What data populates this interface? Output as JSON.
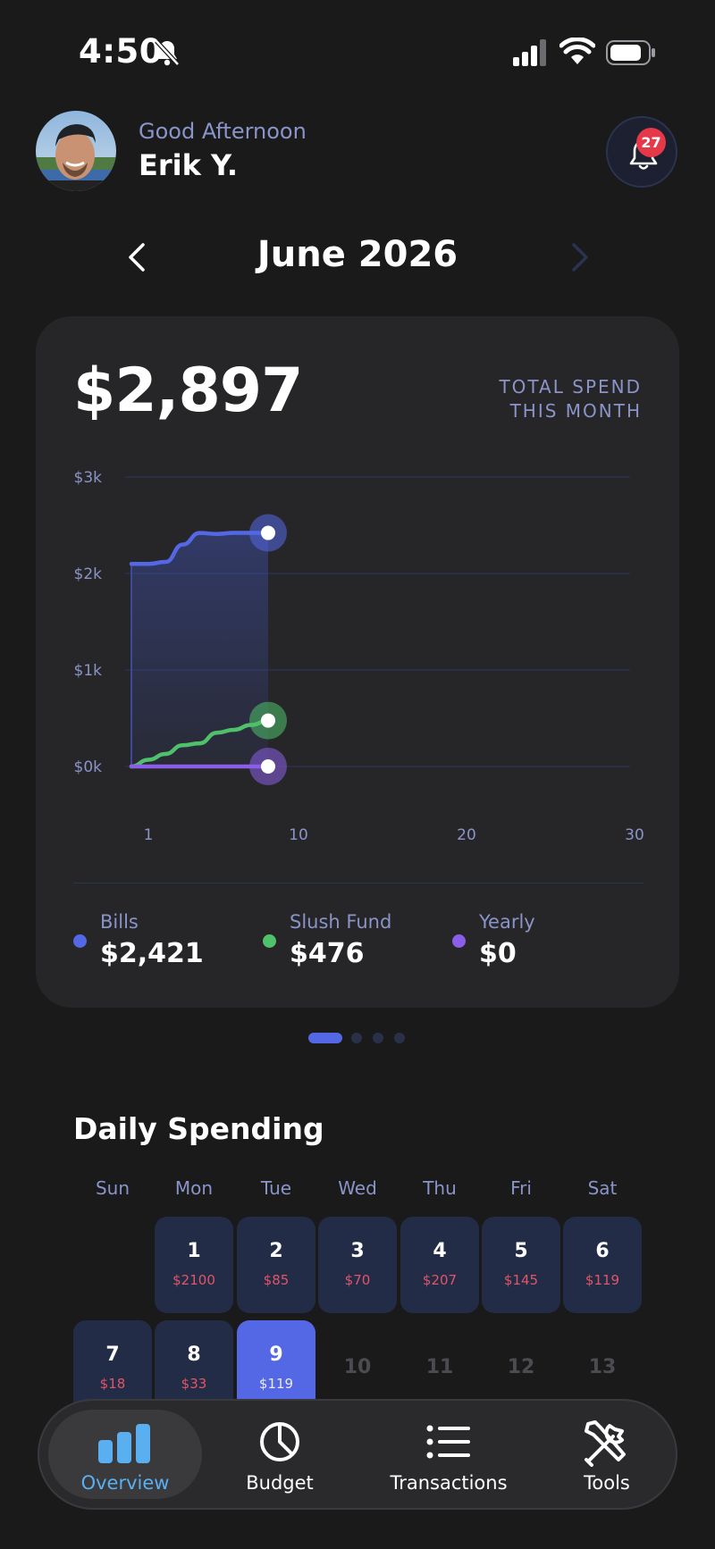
{
  "status_bar": {
    "time": "4:50"
  },
  "header": {
    "greeting": "Good Afternoon",
    "user_name": "Erik Y.",
    "notification_count": "27"
  },
  "month_nav": {
    "title": "June 2026"
  },
  "summary": {
    "total_amount": "$2,897",
    "total_label_line1": "TOTAL SPEND",
    "total_label_line2": "THIS MONTH"
  },
  "chart_data": {
    "type": "line",
    "y_ticks": [
      "$3k",
      "$2k",
      "$1k",
      "$0k"
    ],
    "ylim": [
      0,
      3000
    ],
    "x_ticks": [
      "1",
      "10",
      "20",
      "30"
    ],
    "xlim": [
      1,
      30
    ],
    "grid": true,
    "series": [
      {
        "name": "Bills",
        "color": "#5468e6",
        "x": [
          1,
          2,
          3,
          4,
          5,
          6,
          7,
          8,
          9
        ],
        "y": [
          2100,
          2100,
          2120,
          2300,
          2420,
          2410,
          2421,
          2421,
          2421
        ]
      },
      {
        "name": "Slush Fund",
        "color": "#4fc16a",
        "x": [
          1,
          2,
          3,
          4,
          5,
          6,
          7,
          8,
          9
        ],
        "y": [
          0,
          70,
          130,
          220,
          240,
          350,
          380,
          430,
          476
        ]
      },
      {
        "name": "Yearly",
        "color": "#8a5ee6",
        "x": [
          1,
          2,
          3,
          4,
          5,
          6,
          7,
          8,
          9
        ],
        "y": [
          0,
          0,
          0,
          0,
          0,
          0,
          0,
          0,
          0
        ]
      }
    ]
  },
  "legend": [
    {
      "name": "Bills",
      "value": "$2,421",
      "color": "#5468e6"
    },
    {
      "name": "Slush Fund",
      "value": "$476",
      "color": "#4fc16a"
    },
    {
      "name": "Yearly",
      "value": "$0",
      "color": "#8a5ee6"
    }
  ],
  "pager": {
    "pages": 4,
    "active_index": 0
  },
  "daily_spending": {
    "title": "Daily Spending",
    "weekdays": [
      "Sun",
      "Mon",
      "Tue",
      "Wed",
      "Thu",
      "Fri",
      "Sat"
    ],
    "week1": [
      {
        "day": "",
        "amount": ""
      },
      {
        "day": "1",
        "amount": "$2100"
      },
      {
        "day": "2",
        "amount": "$85"
      },
      {
        "day": "3",
        "amount": "$70"
      },
      {
        "day": "4",
        "amount": "$207"
      },
      {
        "day": "5",
        "amount": "$145"
      },
      {
        "day": "6",
        "amount": "$119"
      }
    ],
    "week2": [
      {
        "day": "7",
        "amount": "$18"
      },
      {
        "day": "8",
        "amount": "$33"
      },
      {
        "day": "9",
        "amount": "$119",
        "selected": true
      },
      {
        "day": "10",
        "amount": ""
      },
      {
        "day": "11",
        "amount": ""
      },
      {
        "day": "12",
        "amount": ""
      },
      {
        "day": "13",
        "amount": ""
      }
    ]
  },
  "bottom_nav": {
    "items": [
      {
        "label": "Overview",
        "icon": "bar-chart-icon",
        "active": true
      },
      {
        "label": "Budget",
        "icon": "pie-chart-icon"
      },
      {
        "label": "Transactions",
        "icon": "list-icon"
      },
      {
        "label": "Tools",
        "icon": "tools-icon"
      }
    ]
  },
  "colors": {
    "accent": "#5468e6",
    "negative": "#e05568",
    "badge": "#e5394a",
    "nav_active": "#5aaff0"
  }
}
